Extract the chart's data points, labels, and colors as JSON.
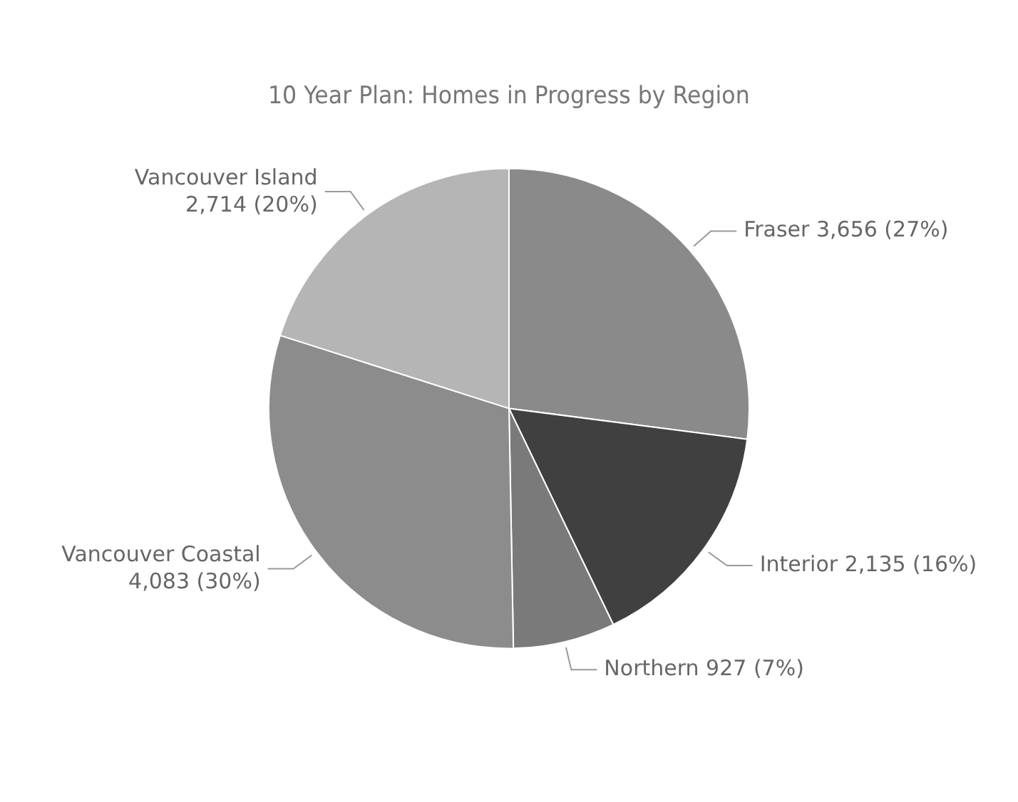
{
  "chart_data": {
    "type": "pie",
    "title": "10 Year Plan: Homes in Progress by Region",
    "categories": [
      "Fraser",
      "Interior",
      "Northern",
      "Vancouver Coastal",
      "Vancouver Island"
    ],
    "values": [
      3656,
      2135,
      927,
      4083,
      2714
    ],
    "value_labels": [
      "3,656 (27%)",
      "2,135 (16%)",
      "927 (7%)",
      "4,083 (30%)",
      "2,714 (20%)"
    ],
    "colors": [
      "#8a8a8a",
      "#404040",
      "#7a7a7a",
      "#8c8c8c",
      "#b5b5b5"
    ],
    "legend": false
  }
}
